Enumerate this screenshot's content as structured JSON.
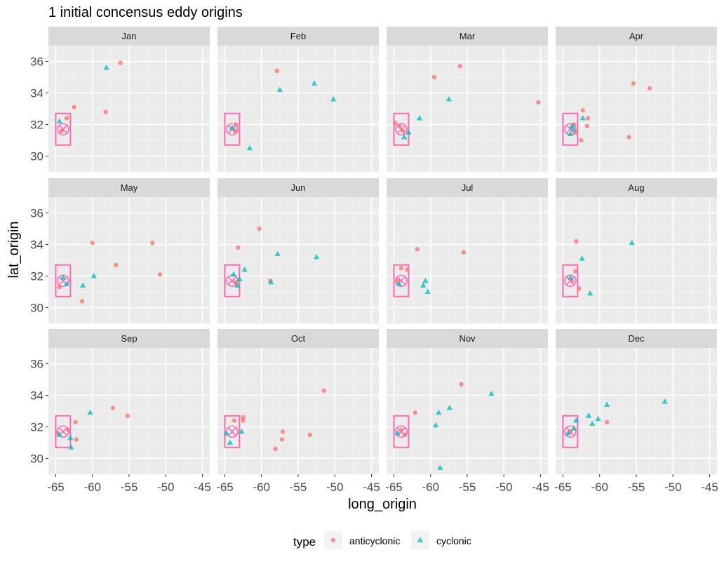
{
  "colors": {
    "panel_bg": "#ebebeb",
    "grid_major": "#ffffff",
    "grid_minor": "#f5f5f5",
    "strip_bg": "#d9d9d9",
    "anticyclonic": "#f8766d",
    "cyclonic": "#00bfc4",
    "box": "#ff69b4",
    "tick": "#333333"
  },
  "chart_data": {
    "type": "scatter",
    "title": "1 initial concensus eddy origins",
    "xlabel": "long_origin",
    "ylabel": "lat_origin",
    "xlim": [
      -66,
      -44
    ],
    "ylim": [
      29,
      37
    ],
    "x_ticks": [
      -65,
      -60,
      -55,
      -50,
      -45
    ],
    "x_tick_labels": [
      "-65",
      "-60",
      "-55",
      "-50",
      "-45"
    ],
    "y_ticks": [
      30,
      32,
      34,
      36
    ],
    "y_tick_labels": [
      "30",
      "32",
      "34",
      "36"
    ],
    "grid": true,
    "legend": {
      "title": "type",
      "position": "bottom",
      "entries": [
        {
          "label": "anticyclonic",
          "shape": "circle",
          "color": "#f8766d"
        },
        {
          "label": "cyclonic",
          "shape": "triangle",
          "color": "#00bfc4"
        }
      ]
    },
    "reference_box": {
      "x": [
        -65,
        -63
      ],
      "y": [
        30.7,
        32.7
      ],
      "center": [
        -64,
        31.7
      ]
    },
    "layout": {
      "nrow": 3,
      "ncol": 4
    },
    "panels": [
      {
        "label": "Jan",
        "anticyclonic": [
          [
            -56.2,
            35.9
          ],
          [
            -58.2,
            32.8
          ],
          [
            -62.5,
            33.1
          ],
          [
            -63.5,
            32.4
          ],
          [
            -64.2,
            31.6
          ]
        ],
        "cyclonic": [
          [
            -58.1,
            35.6
          ],
          [
            -64.5,
            32.2
          ]
        ]
      },
      {
        "label": "Feb",
        "anticyclonic": [
          [
            -57.9,
            35.4
          ],
          [
            -63.5,
            32.0
          ],
          [
            -63.6,
            31.6
          ]
        ],
        "cyclonic": [
          [
            -57.5,
            34.2
          ],
          [
            -52.8,
            34.6
          ],
          [
            -50.2,
            33.6
          ],
          [
            -61.6,
            30.5
          ],
          [
            -64.0,
            31.8
          ]
        ]
      },
      {
        "label": "Mar",
        "anticyclonic": [
          [
            -56.0,
            35.7
          ],
          [
            -59.5,
            35.0
          ],
          [
            -45.3,
            33.4
          ],
          [
            -64.8,
            32.1
          ],
          [
            -64.2,
            31.9
          ],
          [
            -63.8,
            31.6
          ]
        ],
        "cyclonic": [
          [
            -57.5,
            33.6
          ],
          [
            -61.5,
            32.4
          ],
          [
            -63.0,
            31.5
          ],
          [
            -63.6,
            31.2
          ]
        ]
      },
      {
        "label": "Apr",
        "anticyclonic": [
          [
            -55.4,
            34.6
          ],
          [
            -53.2,
            34.3
          ],
          [
            -62.3,
            32.9
          ],
          [
            -61.6,
            32.4
          ],
          [
            -61.7,
            31.9
          ],
          [
            -56.0,
            31.2
          ],
          [
            -62.5,
            31.0
          ],
          [
            -63.5,
            32.0
          ],
          [
            -63.3,
            31.5
          ]
        ],
        "cyclonic": [
          [
            -62.3,
            32.4
          ],
          [
            -63.8,
            31.9
          ],
          [
            -63.6,
            31.7
          ],
          [
            -64.0,
            31.4
          ]
        ]
      },
      {
        "label": "May",
        "anticyclonic": [
          [
            -60.0,
            34.1
          ],
          [
            -51.8,
            34.1
          ],
          [
            -56.8,
            32.7
          ],
          [
            -50.8,
            32.1
          ],
          [
            -61.4,
            30.4
          ],
          [
            -64.5,
            31.3
          ]
        ],
        "cyclonic": [
          [
            -59.8,
            32.0
          ],
          [
            -61.3,
            31.4
          ],
          [
            -63.5,
            31.5
          ],
          [
            -64.0,
            31.9
          ]
        ]
      },
      {
        "label": "Jun",
        "anticyclonic": [
          [
            -60.3,
            35.0
          ],
          [
            -63.2,
            33.8
          ],
          [
            -58.8,
            31.7
          ],
          [
            -63.6,
            31.6
          ]
        ],
        "cyclonic": [
          [
            -57.8,
            33.4
          ],
          [
            -52.5,
            33.2
          ],
          [
            -62.3,
            32.4
          ],
          [
            -63.8,
            32.1
          ],
          [
            -58.7,
            31.6
          ],
          [
            -63.0,
            31.8
          ],
          [
            -63.3,
            31.4
          ]
        ]
      },
      {
        "label": "Jul",
        "anticyclonic": [
          [
            -61.8,
            33.7
          ],
          [
            -55.5,
            33.5
          ],
          [
            -64.0,
            32.5
          ],
          [
            -63.2,
            32.4
          ],
          [
            -64.5,
            31.7
          ]
        ],
        "cyclonic": [
          [
            -60.7,
            31.7
          ],
          [
            -61.0,
            31.4
          ],
          [
            -60.4,
            31.0
          ],
          [
            -64.3,
            31.5
          ]
        ]
      },
      {
        "label": "Aug",
        "anticyclonic": [
          [
            -63.2,
            34.2
          ],
          [
            -63.3,
            32.3
          ],
          [
            -62.8,
            31.2
          ],
          [
            -63.8,
            31.7
          ]
        ],
        "cyclonic": [
          [
            -55.6,
            34.1
          ],
          [
            -62.4,
            33.1
          ],
          [
            -61.3,
            30.9
          ],
          [
            -64.0,
            31.9
          ]
        ]
      },
      {
        "label": "Sep",
        "anticyclonic": [
          [
            -57.2,
            33.2
          ],
          [
            -55.2,
            32.7
          ],
          [
            -62.3,
            32.3
          ],
          [
            -62.2,
            31.2
          ],
          [
            -63.3,
            31.8
          ],
          [
            -64.8,
            31.6
          ]
        ],
        "cyclonic": [
          [
            -60.3,
            32.9
          ],
          [
            -62.9,
            30.7
          ],
          [
            -63.0,
            31.3
          ],
          [
            -64.5,
            31.5
          ]
        ]
      },
      {
        "label": "Oct",
        "anticyclonic": [
          [
            -51.5,
            34.3
          ],
          [
            -62.5,
            32.6
          ],
          [
            -62.5,
            32.4
          ],
          [
            -57.1,
            31.7
          ],
          [
            -57.2,
            31.2
          ],
          [
            -53.4,
            31.5
          ],
          [
            -58.1,
            30.6
          ],
          [
            -63.7,
            32.4
          ]
        ],
        "cyclonic": [
          [
            -62.7,
            31.7
          ],
          [
            -64.3,
            31.0
          ],
          [
            -64.8,
            31.6
          ]
        ]
      },
      {
        "label": "Nov",
        "anticyclonic": [
          [
            -55.8,
            34.7
          ],
          [
            -62.1,
            32.9
          ],
          [
            -64.0,
            31.8
          ],
          [
            -63.5,
            31.5
          ]
        ],
        "cyclonic": [
          [
            -51.7,
            34.1
          ],
          [
            -57.4,
            33.2
          ],
          [
            -58.9,
            32.9
          ],
          [
            -59.3,
            32.1
          ],
          [
            -58.7,
            29.4
          ],
          [
            -64.5,
            31.6
          ]
        ]
      },
      {
        "label": "Dec",
        "anticyclonic": [
          [
            -59.0,
            32.3
          ],
          [
            -64.0,
            31.7
          ]
        ],
        "cyclonic": [
          [
            -51.1,
            33.6
          ],
          [
            -59.0,
            33.4
          ],
          [
            -61.5,
            32.7
          ],
          [
            -60.2,
            32.5
          ],
          [
            -61.0,
            32.2
          ],
          [
            -63.2,
            32.4
          ],
          [
            -63.5,
            31.9
          ],
          [
            -64.3,
            31.6
          ]
        ]
      }
    ]
  }
}
